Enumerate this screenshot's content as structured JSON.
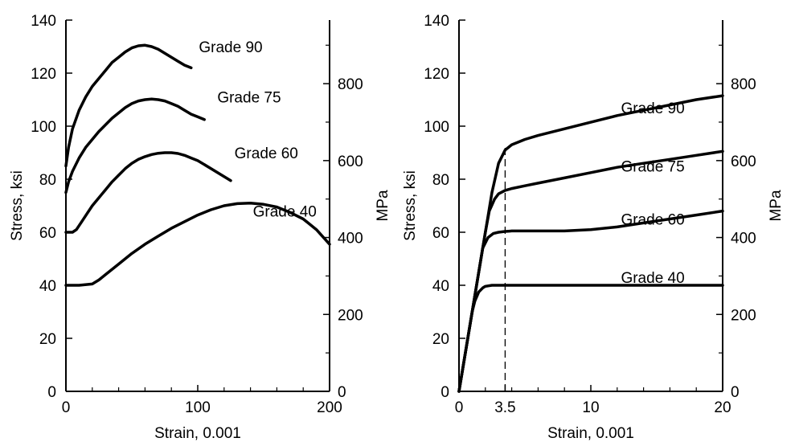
{
  "chart_data": [
    {
      "type": "line",
      "xlabel": "Strain, 0.001",
      "ylabel": "Stress, ksi",
      "y2label": "MPa",
      "xlim": [
        0,
        200
      ],
      "ylim": [
        0,
        140
      ],
      "y2lim": [
        0,
        965.3
      ],
      "xticks": [
        0,
        100,
        200
      ],
      "xminor": [
        20,
        40,
        60,
        80,
        120,
        140,
        160,
        180
      ],
      "yticks": [
        0,
        20,
        40,
        60,
        80,
        100,
        120,
        140
      ],
      "y2ticks": [
        0,
        200,
        400,
        600,
        800
      ],
      "y2minor": [
        100,
        300,
        500,
        700,
        900
      ],
      "grid": false,
      "series": [
        {
          "name": "Grade 90",
          "x": [
            0,
            2,
            5,
            10,
            15,
            20,
            25,
            30,
            35,
            40,
            45,
            50,
            55,
            60,
            65,
            70,
            75,
            80,
            85,
            90,
            95
          ],
          "y": [
            85,
            92,
            99,
            106,
            111,
            115,
            118,
            121,
            124,
            126,
            128,
            129.5,
            130.3,
            130.5,
            130,
            129,
            127.5,
            126,
            124.5,
            123,
            122
          ]
        },
        {
          "name": "Grade 75",
          "x": [
            0,
            2,
            5,
            10,
            15,
            20,
            25,
            30,
            35,
            40,
            45,
            50,
            55,
            60,
            65,
            70,
            75,
            80,
            85,
            90,
            95,
            100,
            105
          ],
          "y": [
            75,
            79,
            83,
            88,
            92,
            95,
            98,
            100.5,
            103,
            105,
            107,
            108.5,
            109.5,
            110,
            110.2,
            110,
            109.5,
            108.5,
            107.5,
            106,
            104.5,
            103.5,
            102.5
          ]
        },
        {
          "name": "Grade 60",
          "x": [
            0,
            5,
            8,
            12,
            16,
            20,
            25,
            30,
            35,
            40,
            45,
            50,
            55,
            60,
            65,
            70,
            75,
            80,
            85,
            90,
            95,
            100,
            105,
            110,
            115,
            120,
            125
          ],
          "y": [
            60,
            60,
            61,
            64,
            67,
            70,
            73,
            76,
            79,
            81.5,
            84,
            86,
            87.5,
            88.5,
            89.3,
            89.8,
            90,
            90,
            89.7,
            89,
            88,
            87,
            85.5,
            84,
            82.5,
            81,
            79.5
          ]
        },
        {
          "name": "Grade 40",
          "x": [
            0,
            10,
            20,
            25,
            30,
            40,
            50,
            60,
            70,
            80,
            90,
            100,
            110,
            120,
            130,
            140,
            150,
            160,
            170,
            180,
            190,
            200
          ],
          "y": [
            40,
            40,
            40.5,
            42,
            44,
            48,
            52,
            55.5,
            58.5,
            61.5,
            64,
            66.5,
            68.5,
            70,
            70.8,
            71,
            70.5,
            69.5,
            67.5,
            65,
            61,
            55.5
          ]
        }
      ],
      "series_labels": [
        {
          "text": "Grade 90",
          "x": 125,
          "y": 130
        },
        {
          "text": "Grade 75",
          "x": 139,
          "y": 111
        },
        {
          "text": "Grade 60",
          "x": 152,
          "y": 90
        },
        {
          "text": "Grade 40",
          "x": 166,
          "y": 68
        }
      ]
    },
    {
      "type": "line",
      "xlabel": "Strain, 0.001",
      "ylabel": "Stress, ksi",
      "y2label": "MPa",
      "xlim": [
        0,
        20
      ],
      "ylim": [
        0,
        140
      ],
      "y2lim": [
        0,
        965.3
      ],
      "xticks": [
        0,
        3.5,
        10,
        20
      ],
      "xminor": [
        2,
        4,
        6,
        8,
        12,
        14,
        16,
        18
      ],
      "yticks": [
        0,
        20,
        40,
        60,
        80,
        100,
        120,
        140
      ],
      "y2ticks": [
        0,
        200,
        400,
        600,
        800
      ],
      "y2minor": [
        100,
        300,
        500,
        700,
        900
      ],
      "reference_line_x": 3.5,
      "grid": false,
      "series": [
        {
          "name": "Grade 90",
          "x": [
            0,
            0.5,
            1,
            1.5,
            2,
            2.5,
            3,
            3.5,
            4,
            5,
            6,
            8,
            10,
            12,
            14,
            16,
            18,
            20
          ],
          "y": [
            0,
            15,
            30,
            45,
            60,
            75,
            86,
            91,
            93,
            95,
            96.5,
            99,
            101.5,
            104,
            106,
            108,
            110,
            111.5
          ]
        },
        {
          "name": "Grade 75",
          "x": [
            0,
            0.5,
            1,
            1.5,
            2,
            2.3,
            2.7,
            3,
            3.5,
            4,
            5,
            6,
            8,
            10,
            12,
            14,
            16,
            18,
            20
          ],
          "y": [
            0,
            15,
            30,
            45,
            60,
            68,
            72.5,
            74.5,
            75.8,
            76.5,
            77.5,
            78.5,
            80.5,
            82.5,
            84.5,
            86,
            87.5,
            89,
            90.5
          ]
        },
        {
          "name": "Grade 60",
          "x": [
            0,
            0.5,
            1,
            1.5,
            1.8,
            2.2,
            2.6,
            3,
            3.5,
            4,
            6,
            8,
            10,
            12,
            14,
            16,
            18,
            20
          ],
          "y": [
            0,
            15,
            30,
            45,
            54,
            58,
            59.5,
            60,
            60.3,
            60.5,
            60.5,
            60.5,
            61,
            62,
            63.5,
            65,
            66.5,
            68
          ]
        },
        {
          "name": "Grade 40",
          "x": [
            0,
            0.5,
            1,
            1.2,
            1.5,
            1.8,
            2,
            2.5,
            3,
            4,
            6,
            10,
            15,
            20
          ],
          "y": [
            0,
            15,
            30,
            34,
            37.5,
            39,
            39.6,
            40,
            40,
            40,
            40,
            40,
            40,
            40
          ]
        }
      ],
      "series_labels": [
        {
          "text": "Grade 90",
          "x": 14.7,
          "y": 107
        },
        {
          "text": "Grade 75",
          "x": 14.7,
          "y": 85
        },
        {
          "text": "Grade 60",
          "x": 14.7,
          "y": 65
        },
        {
          "text": "Grade 40",
          "x": 14.7,
          "y": 43
        }
      ]
    }
  ]
}
